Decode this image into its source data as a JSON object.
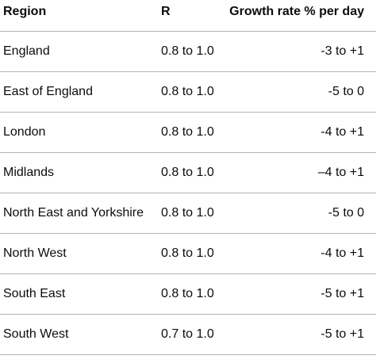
{
  "table": {
    "headers": {
      "region": "Region",
      "r": "R",
      "growth": "Growth rate % per day"
    },
    "rows": [
      {
        "region": "England",
        "r": "0.8 to 1.0",
        "growth": "-3 to +1"
      },
      {
        "region": "East of England",
        "r": "0.8 to 1.0",
        "growth": "-5 to 0"
      },
      {
        "region": "London",
        "r": "0.8 to 1.0",
        "growth": "-4 to +1"
      },
      {
        "region": "Midlands",
        "r": "0.8 to 1.0",
        "growth": "–4 to +1"
      },
      {
        "region": "North East and Yorkshire",
        "r": "0.8 to 1.0",
        "growth": "-5 to 0"
      },
      {
        "region": "North West",
        "r": "0.8 to 1.0",
        "growth": "-4 to +1"
      },
      {
        "region": "South East",
        "r": "0.8 to 1.0",
        "growth": "-5 to +1"
      },
      {
        "region": "South West",
        "r": "0.7 to 1.0",
        "growth": "-5 to +1"
      }
    ]
  }
}
